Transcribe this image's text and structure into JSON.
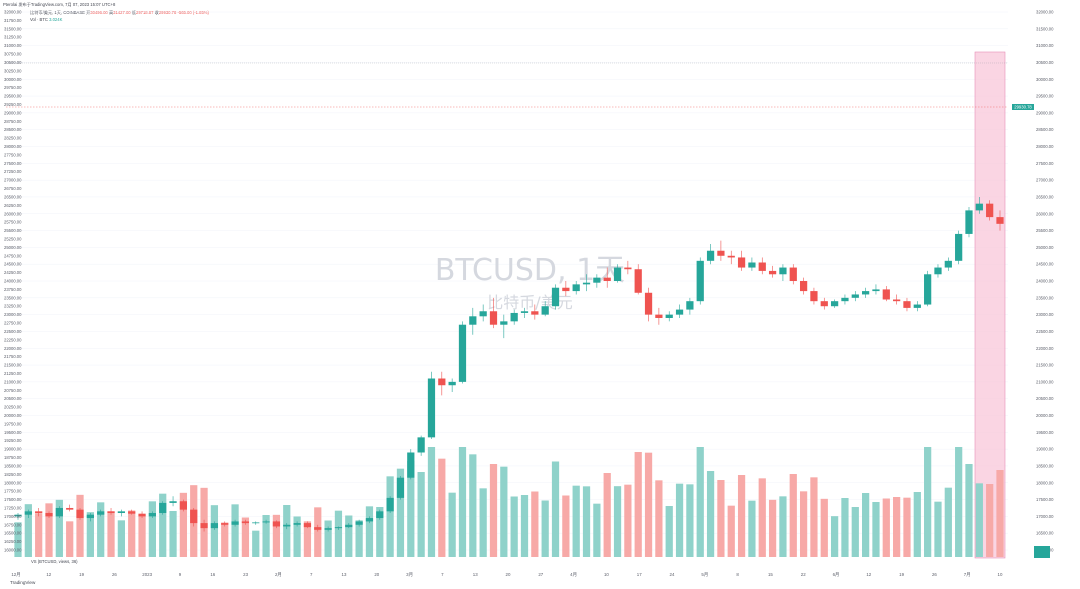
{
  "header": {
    "publisher": "Pterolai 发布于TradingView.com, 7月 07, 2023 15:07 UTC+8",
    "symbol": "比特币/美元, 1天, COINBASE",
    "ohlc_labels": [
      "开",
      "高",
      "低",
      "收"
    ],
    "ohlc_values": [
      "30496.00",
      "31427.00",
      "29718.87",
      "29930.78"
    ],
    "change": "-565.00 (-1.85%)",
    "vol_label": "Vol · BTC",
    "vol_value": "3.024K"
  },
  "watermark": {
    "line1": "BTCUSD, 1天",
    "line2": "比特币/美元"
  },
  "volume_legend": "VS (BTCUSD, views, 36)",
  "logo": "TradingView",
  "colors": {
    "up": "#26a69a",
    "down": "#ef5350",
    "up_vol": "#8fd2ca",
    "down_vol": "#f7a9a7",
    "highlight": "#f8c7d9",
    "highlight_border": "#e78fb7"
  },
  "price_axis": {
    "min": 16000,
    "max": 32000,
    "step": 250,
    "current_price_label": "29930.78",
    "label_max": 32000
  },
  "vol_axis_labels": [
    "18400.000",
    "18300.000"
  ],
  "date_axis": [
    "12月",
    "12",
    "19",
    "26",
    "2023",
    "9",
    "16",
    "23",
    "2月",
    "7",
    "13",
    "20",
    "3月",
    "7",
    "13",
    "20",
    "27",
    "4月",
    "10",
    "17",
    "24",
    "5月",
    "8",
    "15",
    "22",
    "6月",
    "12",
    "19",
    "26",
    "7月",
    "10"
  ],
  "chart_data": {
    "type": "candlestick",
    "title": "BTCUSD, 1天",
    "series": [
      {
        "name": "比特币/美元",
        "ohlc": [
          [
            17000,
            17100,
            16900,
            17050
          ],
          [
            17050,
            17200,
            16950,
            17150
          ],
          [
            17150,
            17250,
            17000,
            17100
          ],
          [
            17100,
            17150,
            16950,
            17000
          ],
          [
            17000,
            17300,
            16950,
            17250
          ],
          [
            17250,
            17350,
            17150,
            17200
          ],
          [
            17200,
            17250,
            16900,
            16950
          ],
          [
            16950,
            17100,
            16850,
            17050
          ],
          [
            17050,
            17200,
            17000,
            17150
          ],
          [
            17150,
            17250,
            17050,
            17100
          ],
          [
            17100,
            17200,
            17000,
            17150
          ],
          [
            17150,
            17200,
            17050,
            17080
          ],
          [
            17080,
            17150,
            16950,
            17000
          ],
          [
            17000,
            17150,
            16950,
            17100
          ],
          [
            17100,
            17450,
            17050,
            17400
          ],
          [
            17400,
            17600,
            17300,
            17450
          ],
          [
            17450,
            17500,
            17150,
            17200
          ],
          [
            17200,
            17250,
            16700,
            16800
          ],
          [
            16800,
            16900,
            16550,
            16650
          ],
          [
            16650,
            16850,
            16600,
            16800
          ],
          [
            16800,
            16850,
            16700,
            16750
          ],
          [
            16750,
            16900,
            16700,
            16850
          ],
          [
            16850,
            16900,
            16750,
            16800
          ],
          [
            16800,
            16850,
            16750,
            16820
          ],
          [
            16820,
            16900,
            16780,
            16850
          ],
          [
            16850,
            16880,
            16650,
            16700
          ],
          [
            16700,
            16800,
            16620,
            16750
          ],
          [
            16750,
            16850,
            16700,
            16800
          ],
          [
            16800,
            16850,
            16650,
            16680
          ],
          [
            16680,
            16750,
            16550,
            16600
          ],
          [
            16600,
            16700,
            16550,
            16650
          ],
          [
            16650,
            16700,
            16600,
            16680
          ],
          [
            16680,
            16800,
            16650,
            16750
          ],
          [
            16750,
            16900,
            16700,
            16850
          ],
          [
            16850,
            17000,
            16800,
            16950
          ],
          [
            16950,
            17200,
            16900,
            17150
          ],
          [
            17150,
            17600,
            17100,
            17550
          ],
          [
            17550,
            18200,
            17500,
            18150
          ],
          [
            18150,
            19000,
            18100,
            18900
          ],
          [
            18900,
            19400,
            18800,
            19350
          ],
          [
            19350,
            21300,
            19300,
            21100
          ],
          [
            21100,
            21300,
            20600,
            20900
          ],
          [
            20900,
            21100,
            20700,
            21000
          ],
          [
            21000,
            22800,
            20950,
            22700
          ],
          [
            22700,
            23200,
            22400,
            22950
          ],
          [
            22950,
            23300,
            22800,
            23100
          ],
          [
            23100,
            23500,
            22600,
            22700
          ],
          [
            22700,
            23000,
            22300,
            22800
          ],
          [
            22800,
            23150,
            22700,
            23050
          ],
          [
            23050,
            23200,
            22900,
            23100
          ],
          [
            23100,
            23300,
            22850,
            23000
          ],
          [
            23000,
            23400,
            22950,
            23250
          ],
          [
            23250,
            23900,
            23150,
            23800
          ],
          [
            23800,
            24000,
            23550,
            23700
          ],
          [
            23700,
            24000,
            23600,
            23900
          ],
          [
            23900,
            24200,
            23700,
            23950
          ],
          [
            23950,
            24200,
            23800,
            24100
          ],
          [
            24100,
            24400,
            23800,
            24000
          ],
          [
            24000,
            24500,
            23950,
            24400
          ],
          [
            24400,
            24600,
            24200,
            24350
          ],
          [
            24350,
            24500,
            23600,
            23650
          ],
          [
            23650,
            23800,
            22800,
            23000
          ],
          [
            23000,
            23200,
            22700,
            22900
          ],
          [
            22900,
            23100,
            22800,
            23000
          ],
          [
            23000,
            23300,
            22900,
            23150
          ],
          [
            23150,
            23500,
            23000,
            23400
          ],
          [
            23400,
            24700,
            23300,
            24600
          ],
          [
            24600,
            25100,
            24500,
            24900
          ],
          [
            24900,
            25200,
            24600,
            24750
          ],
          [
            24750,
            24900,
            24500,
            24700
          ],
          [
            24700,
            24900,
            24300,
            24400
          ],
          [
            24400,
            24700,
            24300,
            24550
          ],
          [
            24550,
            24700,
            24200,
            24300
          ],
          [
            24300,
            24450,
            24100,
            24200
          ],
          [
            24200,
            24500,
            24000,
            24400
          ],
          [
            24400,
            24500,
            23900,
            24000
          ],
          [
            24000,
            24100,
            23600,
            23700
          ],
          [
            23700,
            23800,
            23300,
            23400
          ],
          [
            23400,
            23500,
            23150,
            23250
          ],
          [
            23250,
            23450,
            23200,
            23400
          ],
          [
            23400,
            23600,
            23300,
            23500
          ],
          [
            23500,
            23700,
            23400,
            23600
          ],
          [
            23600,
            23800,
            23500,
            23700
          ],
          [
            23700,
            23900,
            23600,
            23750
          ],
          [
            23750,
            23850,
            23400,
            23450
          ],
          [
            23450,
            23600,
            23300,
            23400
          ],
          [
            23400,
            23500,
            23100,
            23200
          ],
          [
            23200,
            23400,
            23100,
            23300
          ],
          [
            23300,
            24300,
            23250,
            24200
          ],
          [
            24200,
            24500,
            24100,
            24400
          ],
          [
            24400,
            24700,
            24300,
            24600
          ],
          [
            24600,
            25500,
            24500,
            25400
          ],
          [
            25400,
            26200,
            25300,
            26100
          ],
          [
            26100,
            26500,
            26000,
            26300
          ],
          [
            26300,
            26400,
            25800,
            25900
          ],
          [
            25900,
            26100,
            25500,
            25700
          ]
        ]
      }
    ],
    "volume": "relative daily volume bars, colored by candle direction",
    "x_range": [
      "2022-12",
      "2023-07-10"
    ],
    "y_range": [
      16000,
      32000
    ],
    "grid": true
  }
}
